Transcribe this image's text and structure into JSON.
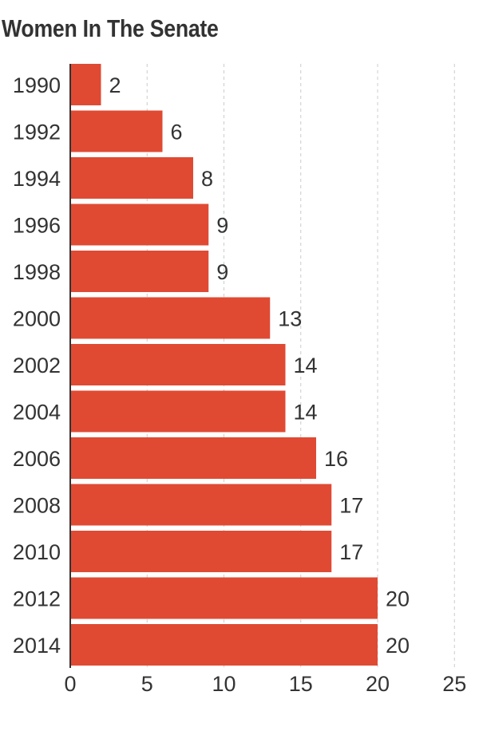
{
  "chart_data": {
    "type": "bar",
    "orientation": "horizontal",
    "title": "Women In The Senate",
    "xlabel": "",
    "ylabel": "",
    "categories": [
      "1990",
      "1992",
      "1994",
      "1996",
      "1998",
      "2000",
      "2002",
      "2004",
      "2006",
      "2008",
      "2010",
      "2012",
      "2014"
    ],
    "values": [
      2,
      6,
      8,
      9,
      9,
      13,
      14,
      14,
      16,
      17,
      17,
      20,
      20
    ],
    "xlim": [
      0,
      25
    ],
    "x_ticks": [
      "0",
      "5",
      "10",
      "15",
      "20",
      "25"
    ],
    "grid": "vertical dashed",
    "legend": "none",
    "bar_color": "#e04a33",
    "text_color": "#333333",
    "grid_color": "#cccccc"
  }
}
